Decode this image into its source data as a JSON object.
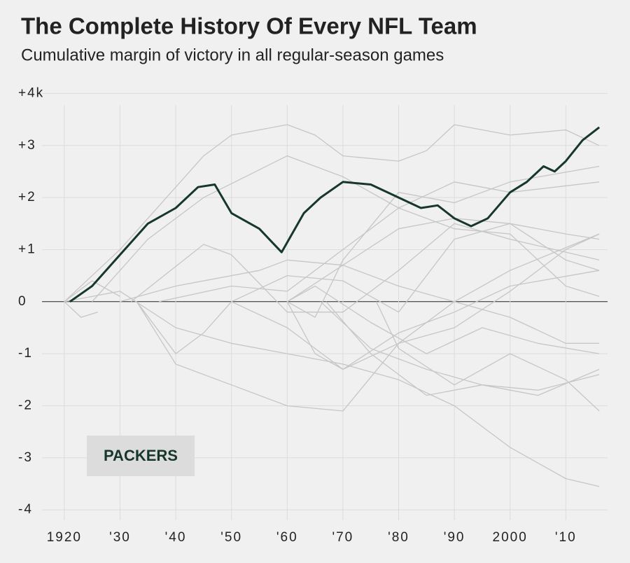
{
  "chart_data": {
    "type": "line",
    "title": "The Complete History Of Every NFL Team",
    "subtitle": "Cumulative margin of victory in all regular-season games",
    "xlim": [
      1916,
      2017.5
    ],
    "ylim": [
      -4.2,
      4.1
    ],
    "xticks": [
      {
        "value": 1920,
        "label": "1920"
      },
      {
        "value": 1930,
        "label": "'30"
      },
      {
        "value": 1940,
        "label": "'40"
      },
      {
        "value": 1950,
        "label": "'50"
      },
      {
        "value": 1960,
        "label": "'60"
      },
      {
        "value": 1970,
        "label": "'70"
      },
      {
        "value": 1980,
        "label": "'80"
      },
      {
        "value": 1990,
        "label": "'90"
      },
      {
        "value": 2000,
        "label": "2000"
      },
      {
        "value": 2010,
        "label": "'10"
      }
    ],
    "yticks": [
      {
        "value": 4,
        "label": "+4k"
      },
      {
        "value": 3,
        "label": "+3"
      },
      {
        "value": 2,
        "label": "+2"
      },
      {
        "value": 1,
        "label": "+1"
      },
      0,
      -1,
      -2,
      -3,
      -4
    ],
    "grid": true,
    "series": [
      {
        "color": "#c6c6c6",
        "x": [
          1920,
          1930,
          1940,
          1945,
          1950,
          1960,
          1965,
          1970,
          1980,
          1985,
          1990,
          2000,
          2010,
          2016
        ],
        "values": [
          0,
          1.0,
          2.2,
          2.8,
          3.2,
          3.4,
          3.2,
          2.8,
          2.7,
          2.9,
          3.4,
          3.2,
          3.3,
          3.0
        ]
      },
      {
        "color": "#c6c6c6",
        "x": [
          1925,
          1935,
          1945,
          1960,
          1970,
          1980,
          1990,
          2000,
          2016
        ],
        "values": [
          0,
          1.2,
          2.0,
          2.8,
          2.4,
          1.8,
          2.3,
          2.1,
          2.3
        ]
      },
      {
        "color": "#c6c6c6",
        "x": [
          1960,
          1965,
          1970,
          1980,
          1990,
          2000,
          2016
        ],
        "values": [
          0,
          -0.3,
          0.8,
          2.1,
          1.9,
          2.3,
          2.6
        ]
      },
      {
        "color": "#c6c6c6",
        "x": [
          1920,
          1930,
          1940,
          1950,
          1960,
          1970,
          1980,
          1990,
          2000,
          2010,
          2016
        ],
        "values": [
          0,
          0.2,
          -0.5,
          -0.8,
          -1.0,
          -1.2,
          -1.5,
          -2.0,
          -2.8,
          -3.4,
          -3.55
        ]
      },
      {
        "color": "#c6c6c6",
        "x": [
          1930,
          1940,
          1955,
          1960,
          1970,
          1980,
          1990,
          2000,
          2010,
          2016
        ],
        "values": [
          0,
          0.3,
          0.6,
          0.8,
          0.7,
          0.3,
          0,
          -0.3,
          -0.8,
          -0.8
        ]
      },
      {
        "color": "#c6c6c6",
        "x": [
          1933,
          1940,
          1945,
          1950,
          1960,
          1970,
          1980,
          1990,
          2000,
          2016
        ],
        "values": [
          0,
          -1.0,
          -0.6,
          0,
          -0.5,
          -1.3,
          -0.6,
          -0.2,
          0.3,
          0.6
        ]
      },
      {
        "color": "#c6c6c6",
        "x": [
          1933,
          1940,
          1950,
          1960,
          1970,
          1980,
          1990,
          2000,
          2010,
          2016
        ],
        "values": [
          0,
          -1.2,
          -1.6,
          -2.0,
          -2.1,
          -0.8,
          -0.5,
          0.2,
          1.0,
          1.3
        ]
      },
      {
        "color": "#c6c6c6",
        "x": [
          1932,
          1945,
          1950,
          1960,
          1970,
          1980,
          1990,
          2000,
          2016
        ],
        "values": [
          0,
          1.1,
          0.9,
          -0.2,
          -0.2,
          0.6,
          1.5,
          1.2,
          0.8
        ]
      },
      {
        "color": "#c6c6c6",
        "x": [
          1937,
          1950,
          1960,
          1970,
          1980,
          1990,
          2000,
          2010,
          2016
        ],
        "values": [
          0,
          0.3,
          0.2,
          1.0,
          1.8,
          1.4,
          1.3,
          0.3,
          0.1
        ]
      },
      {
        "color": "#c6c6c6",
        "x": [
          1950,
          1960,
          1970,
          1980,
          1990,
          2000,
          2010,
          2016
        ],
        "values": [
          0,
          0.5,
          0.4,
          -0.2,
          1.2,
          1.5,
          1.3,
          1.2
        ]
      },
      {
        "color": "#c6c6c6",
        "x": [
          1976,
          1980,
          1990,
          2000,
          2010,
          2016
        ],
        "values": [
          0,
          -0.9,
          -1.6,
          -1.0,
          -1.5,
          -2.1
        ]
      },
      {
        "color": "#c6c6c6",
        "x": [
          1960,
          1970,
          1980,
          1990,
          2000,
          2010,
          2016
        ],
        "values": [
          0,
          0.7,
          1.4,
          1.6,
          1.5,
          0.8,
          0.6
        ]
      },
      {
        "color": "#c6c6c6",
        "x": [
          1960,
          1965,
          1970,
          1980,
          1990,
          2000,
          2016
        ],
        "values": [
          0,
          -1.0,
          -1.3,
          -0.8,
          0,
          0.6,
          1.3
        ]
      },
      {
        "color": "#c6c6c6",
        "x": [
          1960,
          1965,
          1975,
          1985,
          1995,
          2005,
          2016
        ],
        "values": [
          0,
          0.3,
          -0.4,
          -1.0,
          -0.5,
          -0.8,
          -1.0
        ]
      },
      {
        "color": "#c6c6c6",
        "x": [
          1967,
          1975,
          1985,
          1995,
          2005,
          2016
        ],
        "values": [
          0,
          -1.0,
          -1.8,
          -1.6,
          -1.7,
          -1.4
        ]
      },
      {
        "color": "#c6c6c6",
        "x": [
          1966,
          1975,
          1985,
          1995,
          2005,
          2016
        ],
        "values": [
          0,
          -0.9,
          -1.3,
          -1.6,
          -1.8,
          -1.3
        ]
      },
      {
        "color": "#c6c6c6",
        "x": [
          1920,
          1925,
          1930
        ],
        "values": [
          0,
          0.4,
          0.1
        ]
      },
      {
        "color": "#c6c6c6",
        "x": [
          1920,
          1923,
          1926
        ],
        "values": [
          0,
          -0.3,
          -0.2
        ]
      },
      {
        "name": "PACKERS",
        "color": "#17372b",
        "x": [
          1921,
          1925,
          1930,
          1935,
          1940,
          1944,
          1947,
          1950,
          1955,
          1959,
          1963,
          1966,
          1970,
          1975,
          1980,
          1984,
          1987,
          1990,
          1993,
          1996,
          2000,
          2003,
          2006,
          2008,
          2010,
          2013,
          2016
        ],
        "values": [
          0,
          0.3,
          0.9,
          1.5,
          1.8,
          2.2,
          2.25,
          1.7,
          1.4,
          0.95,
          1.7,
          2.0,
          2.3,
          2.25,
          2.0,
          1.8,
          1.85,
          1.6,
          1.45,
          1.6,
          2.1,
          2.3,
          2.6,
          2.5,
          2.7,
          3.1,
          3.35
        ]
      }
    ]
  }
}
